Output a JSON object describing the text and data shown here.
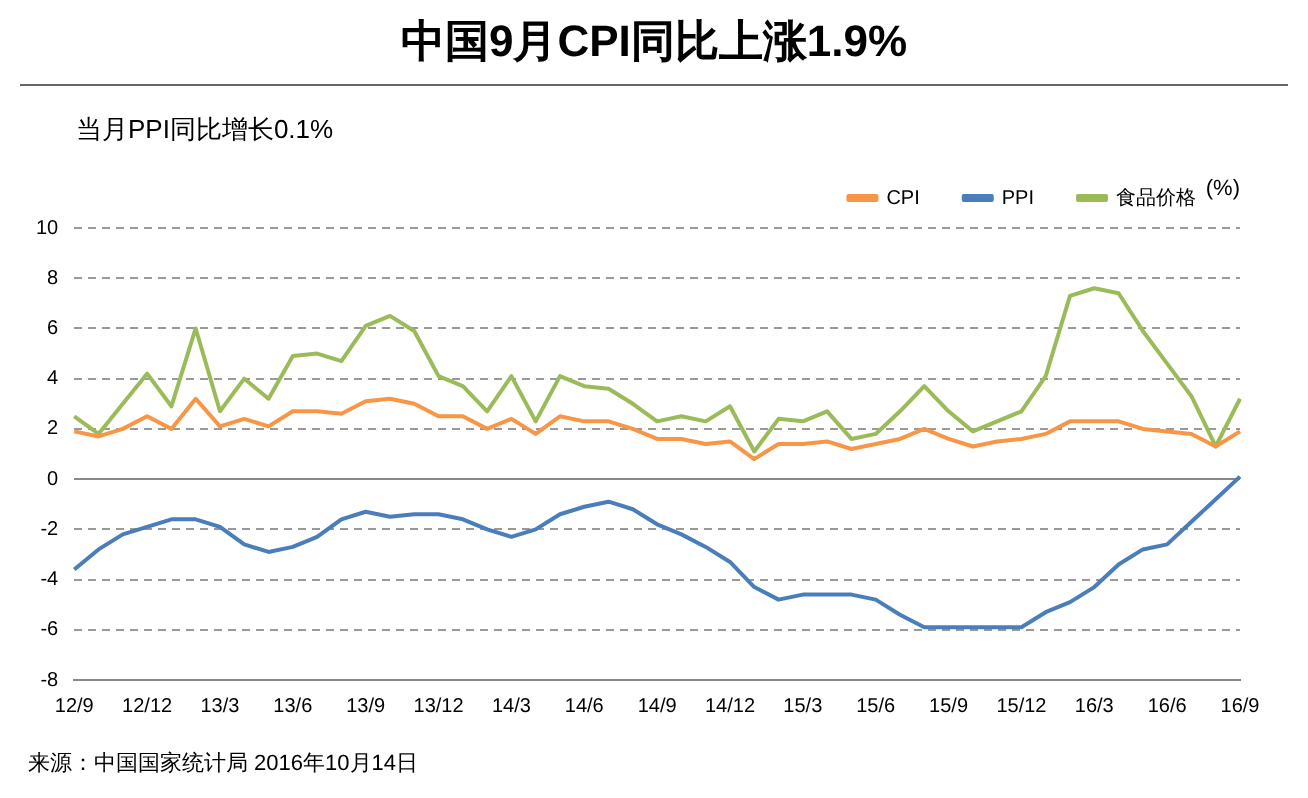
{
  "chart_data": {
    "type": "line",
    "title": "中国9月CPI同比上涨1.9%",
    "subtitle": "当月PPI同比增长0.1%",
    "ylabel": "(%)",
    "annotations": [
      "来源：中国国家统计局    2016年10月14日"
    ],
    "categories": [
      "12/9",
      null,
      null,
      "12/12",
      null,
      null,
      "13/3",
      null,
      null,
      "13/6",
      null,
      null,
      "13/9",
      null,
      null,
      "13/12",
      null,
      null,
      "14/3",
      null,
      null,
      "14/6",
      null,
      null,
      "14/9",
      null,
      null,
      "14/12",
      null,
      null,
      "15/3",
      null,
      null,
      "15/6",
      null,
      null,
      "15/9",
      null,
      null,
      "15/12",
      null,
      null,
      "16/3",
      null,
      null,
      "16/6",
      null,
      null,
      "16/9"
    ],
    "series": [
      {
        "name": "CPI",
        "color": "#f79646",
        "values": [
          1.9,
          1.7,
          2.0,
          2.5,
          2.0,
          3.2,
          2.1,
          2.4,
          2.1,
          2.7,
          2.7,
          2.6,
          3.1,
          3.2,
          3.0,
          2.5,
          2.5,
          2.0,
          2.4,
          1.8,
          2.5,
          2.3,
          2.3,
          2.0,
          1.6,
          1.6,
          1.4,
          1.5,
          0.8,
          1.4,
          1.4,
          1.5,
          1.2,
          1.4,
          1.6,
          2.0,
          1.6,
          1.3,
          1.5,
          1.6,
          1.8,
          2.3,
          2.3,
          2.3,
          2.0,
          1.9,
          1.8,
          1.3,
          1.9
        ]
      },
      {
        "name": "PPI",
        "color": "#4a7ebb",
        "values": [
          -3.6,
          -2.8,
          -2.2,
          -1.9,
          -1.6,
          -1.6,
          -1.9,
          -2.6,
          -2.9,
          -2.7,
          -2.3,
          -1.6,
          -1.3,
          -1.5,
          -1.4,
          -1.4,
          -1.6,
          -2.0,
          -2.3,
          -2.0,
          -1.4,
          -1.1,
          -0.9,
          -1.2,
          -1.8,
          -2.2,
          -2.7,
          -3.3,
          -4.3,
          -4.8,
          -4.6,
          -4.6,
          -4.6,
          -4.8,
          -5.4,
          -5.9,
          -5.9,
          -5.9,
          -5.9,
          -5.9,
          -5.3,
          -4.9,
          -4.3,
          -3.4,
          -2.8,
          -2.6,
          -1.7,
          -0.8,
          0.1
        ]
      },
      {
        "name": "食品价格",
        "color": "#9bbb59",
        "values": [
          2.5,
          1.8,
          3.0,
          4.2,
          2.9,
          6.0,
          2.7,
          4.0,
          3.2,
          4.9,
          5.0,
          4.7,
          6.1,
          6.5,
          5.9,
          4.1,
          3.7,
          2.7,
          4.1,
          2.3,
          4.1,
          3.7,
          3.6,
          3.0,
          2.3,
          2.5,
          2.3,
          2.9,
          1.1,
          2.4,
          2.3,
          2.7,
          1.6,
          1.8,
          2.7,
          3.7,
          2.7,
          1.9,
          2.3,
          2.7,
          4.1,
          7.3,
          7.6,
          7.4,
          5.9,
          4.6,
          3.3,
          1.3,
          3.2
        ]
      }
    ],
    "ylim": [
      -8,
      10
    ],
    "yticks": [
      -8,
      -6,
      -4,
      -2,
      0,
      2,
      4,
      6,
      8,
      10
    ],
    "grid": "y",
    "legend": "top",
    "marker": "none",
    "line_style": "solid"
  }
}
